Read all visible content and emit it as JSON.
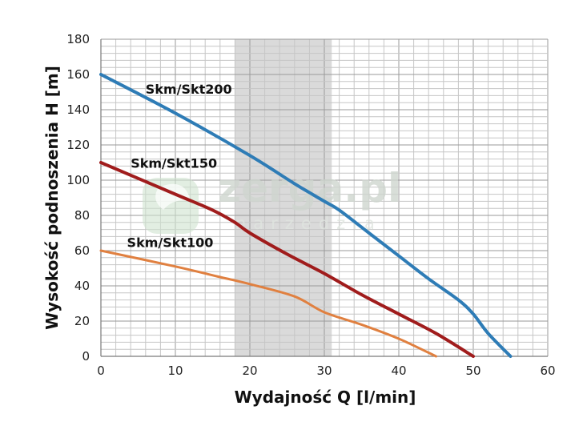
{
  "chart_data": {
    "type": "line",
    "title": "",
    "xlabel": "Wydajność Q [l/min]",
    "ylabel": "Wysokość podnoszenia H [m]",
    "xlim": [
      0,
      60
    ],
    "ylim": [
      0,
      180
    ],
    "xticks": [
      0,
      10,
      20,
      30,
      40,
      50,
      60
    ],
    "yticks": [
      0,
      20,
      40,
      60,
      80,
      100,
      120,
      140,
      160,
      180
    ],
    "grid": true,
    "highlight_band": {
      "x": [
        18,
        31
      ],
      "color": "#d3d3d3"
    },
    "watermark": {
      "text": "zerga.pl",
      "subtext": "narzedzia"
    },
    "series": [
      {
        "name": "Skm/Skt200",
        "color": "#2e7cb6",
        "label_at": [
          6,
          149
        ],
        "points": [
          [
            0,
            160
          ],
          [
            10,
            138
          ],
          [
            20,
            114
          ],
          [
            26,
            98
          ],
          [
            30,
            88
          ],
          [
            32,
            83
          ],
          [
            36,
            70
          ],
          [
            40,
            57
          ],
          [
            44,
            44
          ],
          [
            48,
            32
          ],
          [
            50,
            24
          ],
          [
            52,
            13
          ],
          [
            55,
            0
          ]
        ]
      },
      {
        "name": "Skm/Skt150",
        "color": "#a01c1c",
        "label_at": [
          4,
          107
        ],
        "points": [
          [
            0,
            110
          ],
          [
            10,
            92
          ],
          [
            15,
            83
          ],
          [
            18,
            76
          ],
          [
            20,
            70
          ],
          [
            25,
            58
          ],
          [
            30,
            47
          ],
          [
            35,
            35
          ],
          [
            40,
            24
          ],
          [
            45,
            13
          ],
          [
            50,
            0
          ]
        ]
      },
      {
        "name": "Skm/Skt100",
        "color": "#e08040",
        "label_at": [
          3.5,
          62
        ],
        "points": [
          [
            0,
            60
          ],
          [
            10,
            51
          ],
          [
            16,
            45
          ],
          [
            20,
            41
          ],
          [
            26,
            34
          ],
          [
            30,
            25
          ],
          [
            35,
            18
          ],
          [
            40,
            10
          ],
          [
            45,
            0
          ]
        ]
      }
    ]
  }
}
